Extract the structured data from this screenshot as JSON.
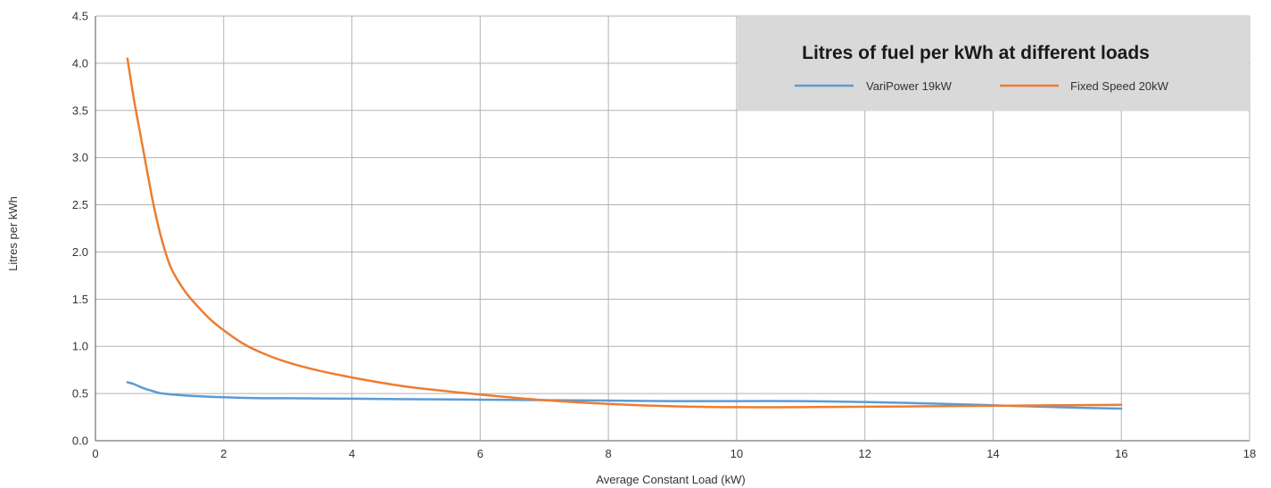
{
  "chart_data": {
    "type": "line",
    "title": "Litres of fuel per kWh at different loads",
    "xlabel": "Average Constant Load (kW)",
    "ylabel": "Litres per kWh",
    "xlim": [
      0,
      18
    ],
    "ylim": [
      0,
      4.5
    ],
    "xticks": [
      "0",
      "2",
      "4",
      "6",
      "8",
      "10",
      "12",
      "14",
      "16",
      "18"
    ],
    "yticks": [
      "0.0",
      "0.5",
      "1.0",
      "1.5",
      "2.0",
      "2.5",
      "3.0",
      "3.5",
      "4.0",
      "4.5"
    ],
    "grid": true,
    "legend_position": "top-right",
    "series": [
      {
        "name": "VariPower 19kW",
        "color": "#5b9bd5",
        "x": [
          0.5,
          0.6,
          0.7,
          0.8,
          0.9,
          1.0,
          1.2,
          1.5,
          2.0,
          2.5,
          3,
          4,
          5,
          6,
          7,
          8,
          9,
          10,
          11,
          12,
          13,
          14,
          15,
          16
        ],
        "y": [
          0.62,
          0.6,
          0.57,
          0.545,
          0.525,
          0.505,
          0.49,
          0.475,
          0.46,
          0.452,
          0.45,
          0.445,
          0.44,
          0.435,
          0.43,
          0.425,
          0.42,
          0.42,
          0.42,
          0.41,
          0.395,
          0.375,
          0.355,
          0.34
        ]
      },
      {
        "name": "Fixed Speed 20kW",
        "color": "#ed7d31",
        "x": [
          0.5,
          0.6,
          0.7,
          0.8,
          0.9,
          1.0,
          1.1,
          1.2,
          1.4,
          1.6,
          1.8,
          2.0,
          2.3,
          2.6,
          3.0,
          3.5,
          4.0,
          4.5,
          5,
          6,
          7,
          8,
          9,
          10,
          11,
          12,
          13,
          14,
          15,
          16
        ],
        "y": [
          4.05,
          3.62,
          3.25,
          2.88,
          2.52,
          2.22,
          1.98,
          1.8,
          1.58,
          1.42,
          1.28,
          1.17,
          1.03,
          0.93,
          0.83,
          0.74,
          0.67,
          0.61,
          0.56,
          0.49,
          0.43,
          0.39,
          0.365,
          0.355,
          0.355,
          0.36,
          0.365,
          0.37,
          0.375,
          0.38
        ]
      }
    ]
  }
}
